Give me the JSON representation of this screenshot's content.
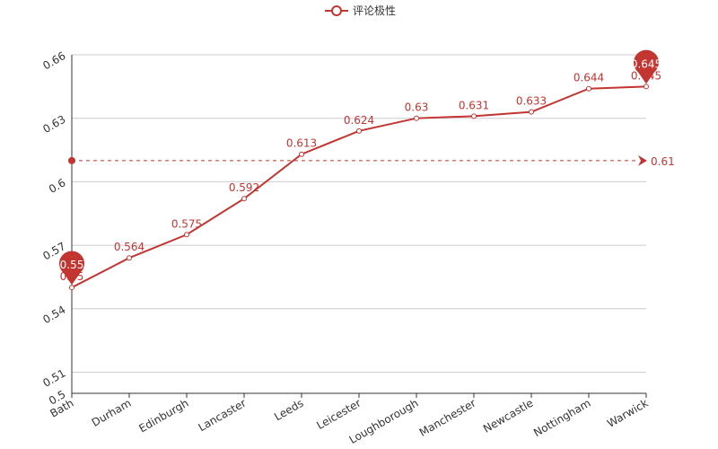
{
  "chart_data": {
    "type": "line",
    "legend": {
      "label": "评论极性",
      "position": "top-center"
    },
    "categories": [
      "Bath",
      "Durham",
      "Edinburgh",
      "Lancaster",
      "Leeds",
      "Leicester",
      "Loughborough",
      "Manchester",
      "Newcastle",
      "Nottingham",
      "Warwick"
    ],
    "series": [
      {
        "name": "评论极性",
        "values": [
          0.55,
          0.564,
          0.575,
          0.592,
          0.613,
          0.624,
          0.63,
          0.631,
          0.633,
          0.644,
          0.645
        ]
      }
    ],
    "data_labels": [
      "0.55",
      "0.564",
      "0.575",
      "0.592",
      "0.613",
      "0.624",
      "0.63",
      "0.631",
      "0.633",
      "0.644",
      "0.645"
    ],
    "markers": {
      "min": {
        "label": "0.55",
        "index": 0
      },
      "max": {
        "label": "0.645",
        "index": 10
      }
    },
    "average_line": {
      "value": 0.61,
      "label": "0.61"
    },
    "y_axis": {
      "min": 0.5,
      "max": 0.66,
      "ticks": [
        "0.5",
        "0.51",
        "0.54",
        "0.57",
        "0.6",
        "0.63",
        "0.66"
      ]
    },
    "grid": true,
    "colors": {
      "series": "#c23531",
      "grid": "#cccccc",
      "axis": "#333333"
    }
  }
}
